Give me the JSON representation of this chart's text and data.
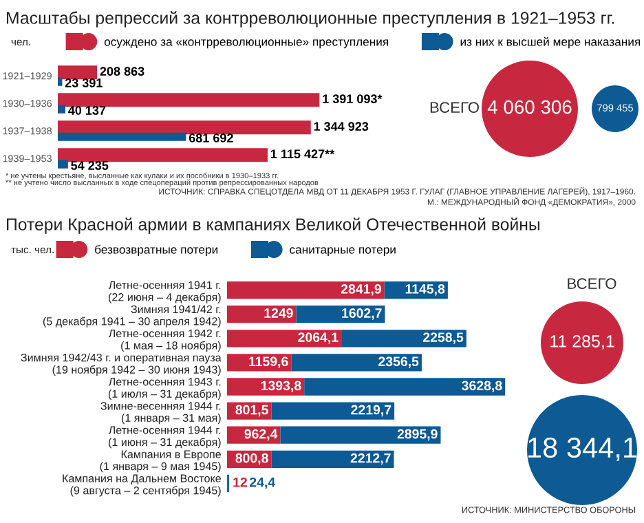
{
  "chart_data": [
    {
      "type": "bar",
      "orientation": "horizontal",
      "title": "Масштабы репрессий за контрреволюционные преступления в 1921–1953 гг.",
      "ylabel": "чел.",
      "legend": "top",
      "categories": [
        "1921–1929",
        "1930–1936",
        "1937–1938",
        "1939–1953"
      ],
      "series": [
        {
          "name": "осуждено за «контрреволюционные» преступления",
          "color": "#c8283f",
          "values": [
            208863,
            1391093,
            1344923,
            1115427
          ],
          "value_labels": [
            "208 863",
            "1 391 093*",
            "1 344 923",
            "1 115 427**"
          ]
        },
        {
          "name": "из них к высшей мере наказания",
          "color": "#0d5a94",
          "values": [
            23391,
            40137,
            681692,
            54235
          ],
          "value_labels": [
            "23 391",
            "40 137",
            "681 692",
            "54 235"
          ]
        }
      ],
      "annotations": [
        "* не учтены крестьяне, высланные как кулаки и их пособники в 1930–1933 гг.",
        "** не учтено число высланных в ходе спецопераций против репрессированных народов",
        "ИСТОЧНИК: СПРАВКА СПЕЦОТДЕЛА МВД ОТ 11 ДЕКАБРЯ 1953 Г. ГУЛАГ (ГЛАВНОЕ УПРАВЛЕНИЕ ЛАГЕРЕЙ), 1917–1960.\nМ.: МЕЖДУНАРОДНЫЙ ФОНД «ДЕМОКРАТИЯ», 2000",
        "ВСЕГО",
        "4 060 306",
        "799 455"
      ]
    },
    {
      "type": "bar",
      "orientation": "horizontal",
      "stacked": true,
      "title": "Потери Красной армии в кампаниях Великой Отечественной войны",
      "ylabel": "тыс. чел.",
      "legend": "top",
      "categories": [
        "Летне-осенняя 1941 г.\n(22 июня – 4 декабря)",
        "Зимняя 1941/42 г.\n(5 декабря 1941 – 30 апреля 1942)",
        "Летне-осенняя 1942 г.\n(1 мая – 18 ноября)",
        "Зимняя 1942/43 г. и оперативная пауза\n(19 ноября 1942 – 30 июня 1943)",
        "Летне-осенняя 1943 г.\n(1 июля – 31 декабря)",
        "Зимне-весенняя 1944 г.\n(1 января – 31 мая)",
        "Летне-осенняя 1944 г.\n(1 июня – 31 декабря)",
        "Кампания в Европе\n(1 января – 9 мая 1945)",
        "Кампания на Дальнем Востоке\n(9 августа – 2 сентября 1945)"
      ],
      "series": [
        {
          "name": "безвозвратные потери",
          "color": "#c8283f",
          "values": [
            2841.9,
            1249,
            2064.1,
            1159.6,
            1393.8,
            801.5,
            962.4,
            800.8,
            12
          ],
          "value_labels": [
            "2841,9",
            "1249",
            "2064,1",
            "1159,6",
            "1393,8",
            "801,5",
            "962,4",
            "800,8",
            "12"
          ]
        },
        {
          "name": "санитарные потери",
          "color": "#0d5a94",
          "values": [
            1145.8,
            1602.7,
            2258.5,
            2356.5,
            3628.8,
            2219.7,
            2895.9,
            2212.7,
            24.4
          ],
          "value_labels": [
            "1145,8",
            "1602,7",
            "2258,5",
            "2356,5",
            "3628,8",
            "2219,7",
            "2895,9",
            "2212,7",
            "24,4"
          ]
        }
      ],
      "annotations": [
        "ВСЕГО",
        "11 285,1",
        "18 344,1",
        "ИСТОЧНИК: МИНИСТЕРСТВО ОБОРОНЫ"
      ]
    }
  ]
}
